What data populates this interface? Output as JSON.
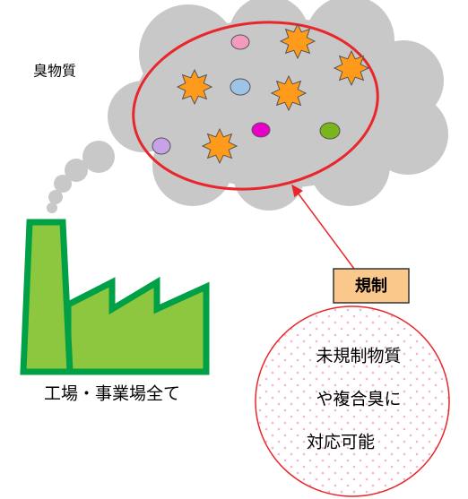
{
  "texts": {
    "partial_label": "臭物質",
    "factory_label": "工場・事業場全て",
    "regulation": "規制",
    "bubble_lines": [
      "未規制物質",
      "や複合臭に",
      "対応可能"
    ]
  }
}
